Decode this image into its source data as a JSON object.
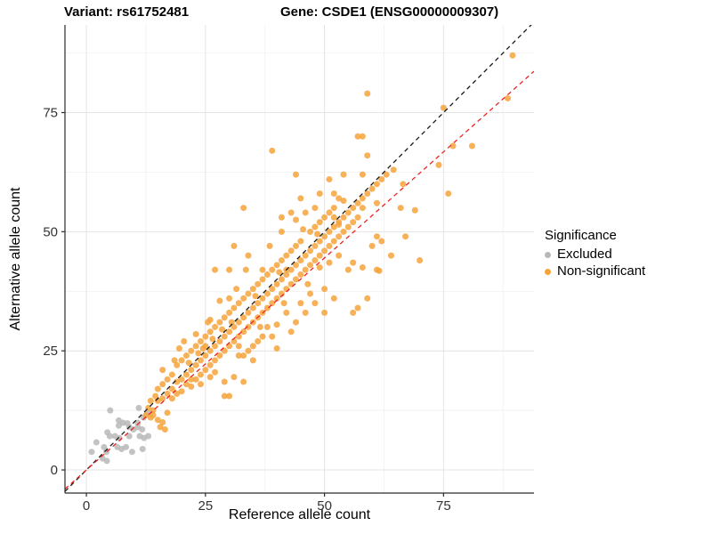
{
  "title": {
    "variant": "Variant: rs61752481",
    "gene": "Gene: CSDE1 (ENSG00000009307)"
  },
  "legend": {
    "title": "Significance",
    "items": [
      {
        "label": "Excluded",
        "color": "#B8B8B8"
      },
      {
        "label": "Non-significant",
        "color": "#F6A33C"
      }
    ]
  },
  "colors": {
    "excluded_point": "#B8B8B8",
    "non_significant_point": "#F6A33C",
    "identity_line": "#1a1a1a",
    "trend_line": "#EE2222",
    "grid_major": "#E4E4E4",
    "grid_minor": "#F2F2F2",
    "axis_line": "#2b2b2b",
    "tick_label": "#333333"
  },
  "chart_data": {
    "type": "scatter",
    "title": "Variant: rs61752481 / Gene: CSDE1 (ENSG00000009307)",
    "xlabel": "Reference allele count",
    "ylabel": "Alternative allele count",
    "xlim": [
      -4.5,
      94
    ],
    "ylim": [
      -4.85,
      93.4
    ],
    "x_ticks": [
      0,
      25,
      50,
      75
    ],
    "y_ticks": [
      0,
      25,
      50,
      75
    ],
    "x_minor_ticks": [
      12.5,
      37.5,
      62.5,
      87.5
    ],
    "y_minor_ticks": [
      12.5,
      37.5,
      62.5,
      87.5
    ],
    "grid": true,
    "legend_position": "right",
    "point_radius_px": 3.5,
    "lines": [
      {
        "name": "identity-line",
        "slope": 1.0,
        "intercept": 0,
        "style": "dashed",
        "color": "#1a1a1a"
      },
      {
        "name": "trend-line",
        "slope": 0.89,
        "intercept": 0,
        "style": "dashed",
        "color": "#EE2222"
      }
    ],
    "series": [
      {
        "name": "Excluded",
        "color": "#B8B8B8",
        "points": [
          [
            1.1,
            3.8
          ],
          [
            2.1,
            5.8
          ],
          [
            3.4,
            2.4
          ],
          [
            4.3,
            1.9
          ],
          [
            4.2,
            3.8
          ],
          [
            3.7,
            4.8
          ],
          [
            4.9,
            7.1
          ],
          [
            4.4,
            7.9
          ],
          [
            6.5,
            4.8
          ],
          [
            7.4,
            4.4
          ],
          [
            8.3,
            4.8
          ],
          [
            6,
            7.1
          ],
          [
            6.9,
            6.7
          ],
          [
            6.8,
            9.3
          ],
          [
            7.7,
            9.9
          ],
          [
            6.8,
            10.4
          ],
          [
            9,
            9
          ],
          [
            9.9,
            8.5
          ],
          [
            10.8,
            9
          ],
          [
            11.7,
            8.5
          ],
          [
            10.8,
            9.9
          ],
          [
            9,
            7.1
          ],
          [
            11.2,
            7.1
          ],
          [
            12.1,
            6.7
          ],
          [
            13,
            7.1
          ],
          [
            9.6,
            3.8
          ],
          [
            11.8,
            4.4
          ],
          [
            5,
            12.5
          ],
          [
            8.6,
            9.8
          ],
          [
            12,
            11
          ],
          [
            13,
            12
          ],
          [
            11,
            13
          ]
        ]
      },
      {
        "name": "Non-significant",
        "color": "#F6A33C",
        "points": [
          [
            12.5,
            11.5
          ],
          [
            13.5,
            11
          ],
          [
            14,
            11.5
          ],
          [
            15,
            10.5
          ],
          [
            16,
            10
          ],
          [
            15.5,
            9
          ],
          [
            16.5,
            8.5
          ],
          [
            13,
            13
          ],
          [
            13.5,
            14.5
          ],
          [
            14,
            12.5
          ],
          [
            14.5,
            15.5
          ],
          [
            15,
            14.5
          ],
          [
            15,
            17
          ],
          [
            16,
            15
          ],
          [
            16,
            18
          ],
          [
            17,
            16
          ],
          [
            17,
            19
          ],
          [
            17,
            12
          ],
          [
            16,
            21
          ],
          [
            18,
            17
          ],
          [
            18,
            20
          ],
          [
            18,
            15
          ],
          [
            18.5,
            23
          ],
          [
            19,
            18.5
          ],
          [
            19,
            22
          ],
          [
            19,
            16
          ],
          [
            19.5,
            25.5
          ],
          [
            20,
            19
          ],
          [
            20,
            23
          ],
          [
            20,
            16.5
          ],
          [
            20.5,
            27
          ],
          [
            21,
            20
          ],
          [
            21,
            24
          ],
          [
            21,
            18
          ],
          [
            21.5,
            22.5
          ],
          [
            22,
            21
          ],
          [
            22,
            25
          ],
          [
            22,
            17.5
          ],
          [
            22,
            19
          ],
          [
            23,
            22
          ],
          [
            23,
            26
          ],
          [
            23,
            19
          ],
          [
            23,
            28.5
          ],
          [
            23.5,
            24.5
          ],
          [
            24,
            23
          ],
          [
            24,
            27
          ],
          [
            24,
            20
          ],
          [
            24,
            18
          ],
          [
            24.5,
            25.5
          ],
          [
            25,
            24
          ],
          [
            25,
            28
          ],
          [
            25,
            21
          ],
          [
            25,
            26
          ],
          [
            25.5,
            31
          ],
          [
            26,
            25
          ],
          [
            26,
            22
          ],
          [
            26,
            29
          ],
          [
            26,
            19.5
          ],
          [
            26,
            31.5
          ],
          [
            26.5,
            27.5
          ],
          [
            27,
            26
          ],
          [
            27,
            23
          ],
          [
            27,
            30
          ],
          [
            27,
            20.5
          ],
          [
            27,
            42
          ],
          [
            28,
            27
          ],
          [
            28,
            24
          ],
          [
            28,
            31
          ],
          [
            28,
            35.5
          ],
          [
            28.5,
            29.5
          ],
          [
            29,
            28
          ],
          [
            29,
            25
          ],
          [
            29,
            32
          ],
          [
            29,
            18.5
          ],
          [
            29,
            15.5
          ],
          [
            30,
            29
          ],
          [
            30,
            26
          ],
          [
            30,
            33
          ],
          [
            30,
            42
          ],
          [
            30,
            15.5
          ],
          [
            30,
            36
          ],
          [
            30.5,
            31
          ],
          [
            31,
            30
          ],
          [
            31,
            27
          ],
          [
            31,
            34
          ],
          [
            31,
            19.5
          ],
          [
            31,
            47
          ],
          [
            31.5,
            38
          ],
          [
            32,
            31
          ],
          [
            32,
            28
          ],
          [
            32,
            35
          ],
          [
            32,
            24
          ],
          [
            32,
            26
          ],
          [
            33,
            32
          ],
          [
            33,
            18.5
          ],
          [
            33,
            29
          ],
          [
            33,
            36
          ],
          [
            33,
            55
          ],
          [
            33,
            24
          ],
          [
            33.5,
            42
          ],
          [
            34,
            33
          ],
          [
            34,
            30
          ],
          [
            34,
            37
          ],
          [
            34,
            25
          ],
          [
            34,
            45
          ],
          [
            35,
            34
          ],
          [
            35,
            31
          ],
          [
            35,
            38
          ],
          [
            35,
            26
          ],
          [
            35,
            23
          ],
          [
            35.5,
            36.5
          ],
          [
            36,
            35
          ],
          [
            36,
            32
          ],
          [
            36,
            39
          ],
          [
            36,
            27
          ],
          [
            36.5,
            30
          ],
          [
            37,
            36
          ],
          [
            37,
            33
          ],
          [
            37,
            40
          ],
          [
            37,
            28
          ],
          [
            37,
            42
          ],
          [
            38,
            37
          ],
          [
            38,
            34
          ],
          [
            38,
            41
          ],
          [
            38,
            30
          ],
          [
            38.5,
            47
          ],
          [
            39,
            38
          ],
          [
            39,
            35
          ],
          [
            39,
            42
          ],
          [
            39,
            67
          ],
          [
            39,
            28
          ],
          [
            40,
            39
          ],
          [
            40,
            36
          ],
          [
            40,
            43
          ],
          [
            40,
            30.5
          ],
          [
            40,
            25.5
          ],
          [
            40.5,
            41.5
          ],
          [
            41,
            40
          ],
          [
            41,
            37
          ],
          [
            41,
            44
          ],
          [
            41,
            50
          ],
          [
            41,
            53
          ],
          [
            41.5,
            35
          ],
          [
            42,
            41
          ],
          [
            42,
            38
          ],
          [
            42,
            45
          ],
          [
            42,
            33
          ],
          [
            42,
            42
          ],
          [
            43,
            42
          ],
          [
            43,
            39
          ],
          [
            43,
            46
          ],
          [
            43,
            54
          ],
          [
            43,
            29
          ],
          [
            44,
            43
          ],
          [
            44,
            40
          ],
          [
            44,
            47
          ],
          [
            44,
            62
          ],
          [
            44,
            52.5
          ],
          [
            44,
            31
          ],
          [
            45,
            44
          ],
          [
            45,
            41
          ],
          [
            45,
            48
          ],
          [
            45,
            35
          ],
          [
            45,
            57
          ],
          [
            45.5,
            50.5
          ],
          [
            46,
            45
          ],
          [
            46,
            42
          ],
          [
            46,
            54
          ],
          [
            46,
            33
          ],
          [
            46.5,
            39
          ],
          [
            47,
            46
          ],
          [
            47,
            43
          ],
          [
            47,
            50
          ],
          [
            47,
            37
          ],
          [
            48,
            47
          ],
          [
            48,
            44
          ],
          [
            48,
            51
          ],
          [
            48,
            55
          ],
          [
            48,
            35
          ],
          [
            48.5,
            49.5
          ],
          [
            49,
            48
          ],
          [
            49,
            45
          ],
          [
            49,
            52
          ],
          [
            49,
            42.5
          ],
          [
            49,
            58
          ],
          [
            50,
            49
          ],
          [
            50,
            46
          ],
          [
            50,
            53
          ],
          [
            50,
            38
          ],
          [
            50,
            33
          ],
          [
            51,
            50
          ],
          [
            51,
            47
          ],
          [
            51,
            54
          ],
          [
            51,
            43.5
          ],
          [
            51,
            61
          ],
          [
            52,
            51
          ],
          [
            52,
            48
          ],
          [
            52,
            55
          ],
          [
            52,
            58
          ],
          [
            52,
            53
          ],
          [
            52,
            36
          ],
          [
            53,
            52
          ],
          [
            53,
            49
          ],
          [
            53,
            57
          ],
          [
            53,
            45
          ],
          [
            53,
            51.5
          ],
          [
            54,
            53
          ],
          [
            54,
            50
          ],
          [
            54,
            62
          ],
          [
            54,
            56.5
          ],
          [
            55,
            54
          ],
          [
            55,
            51
          ],
          [
            55,
            42
          ],
          [
            56,
            55
          ],
          [
            56,
            52
          ],
          [
            56,
            43.5
          ],
          [
            56,
            33
          ],
          [
            57,
            56
          ],
          [
            57,
            53
          ],
          [
            57,
            70
          ],
          [
            57,
            34
          ],
          [
            58,
            57
          ],
          [
            58,
            62
          ],
          [
            58,
            70
          ],
          [
            58,
            55
          ],
          [
            58,
            42.5
          ],
          [
            59,
            58
          ],
          [
            59,
            79
          ],
          [
            59,
            66
          ],
          [
            59,
            36
          ],
          [
            60,
            59
          ],
          [
            60,
            47
          ],
          [
            61,
            60
          ],
          [
            61,
            42
          ],
          [
            61,
            49
          ],
          [
            61,
            56
          ],
          [
            61.5,
            41.8
          ],
          [
            62,
            61
          ],
          [
            62,
            48
          ],
          [
            63,
            62
          ],
          [
            64,
            45
          ],
          [
            64.5,
            63
          ],
          [
            66,
            55
          ],
          [
            66.5,
            60
          ],
          [
            67,
            49
          ],
          [
            69,
            54.5
          ],
          [
            70,
            44
          ],
          [
            74,
            64
          ],
          [
            75,
            76
          ],
          [
            76,
            58
          ],
          [
            77,
            68
          ],
          [
            81,
            68
          ],
          [
            88.5,
            78
          ],
          [
            89.5,
            87
          ]
        ]
      }
    ]
  }
}
